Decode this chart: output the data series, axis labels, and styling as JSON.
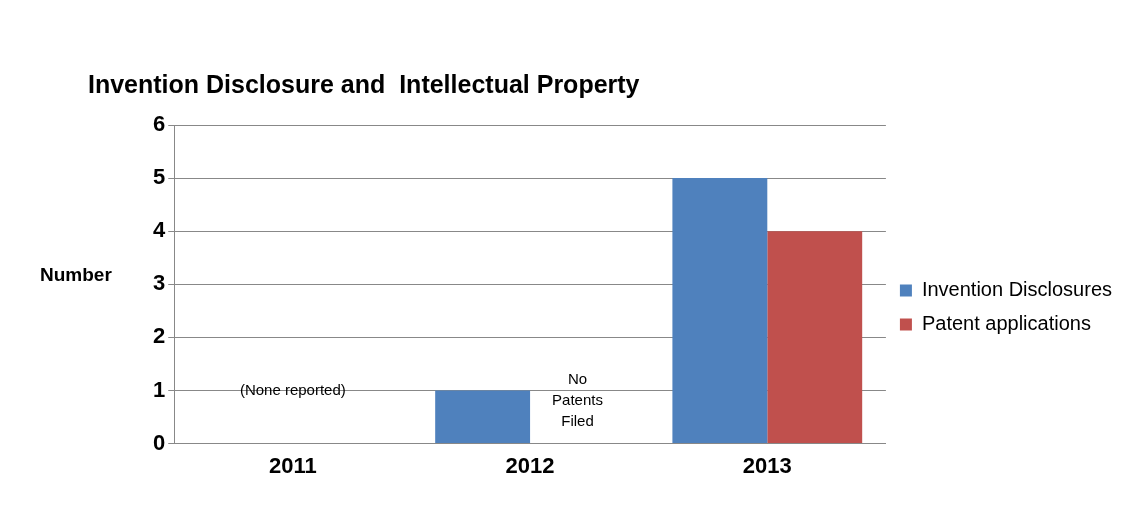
{
  "chart_data": {
    "type": "bar",
    "title": "Invention Disclosure and  Intellectual Property",
    "ylabel": "Number",
    "categories": [
      "2011",
      "2012",
      "2013"
    ],
    "series": [
      {
        "name": "Invention Disclosures",
        "color": "#4f81bd",
        "values": [
          0,
          1,
          5
        ]
      },
      {
        "name": "Patent applications",
        "color": "#c0504d",
        "values": [
          0,
          0,
          4
        ]
      }
    ],
    "ylim": [
      0,
      6
    ],
    "yticks": [
      0,
      1,
      2,
      3,
      4,
      5,
      6
    ],
    "grid": "y",
    "legend": "right",
    "annotations": [
      "(None reported)",
      {
        "text": "No Patents Filed",
        "x": "2012",
        "y": 0.8
      }
    ]
  }
}
